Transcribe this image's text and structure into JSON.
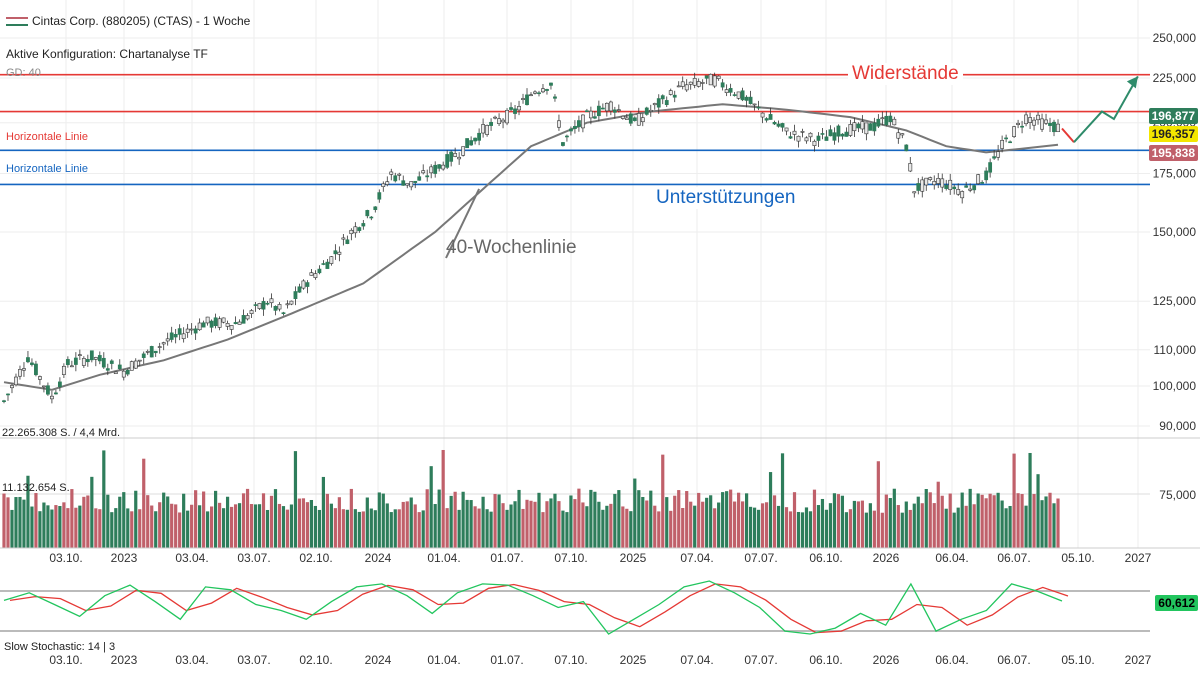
{
  "header": {
    "title": "Cintas Corp. (880205) (CTAS) - 1 Woche",
    "config": "Aktive Konfiguration: Chartanalyse TF",
    "ma_label": "GD: 40",
    "volume_top": "22.265.308 S. / 4,4 Mrd.",
    "volume_mid": "11.132.654 S.",
    "stoch_label": "Slow Stochastic: 14 | 3"
  },
  "price_tags": {
    "a": "196,877",
    "b": "196,357",
    "c": "195,838",
    "stoch": "60,612"
  },
  "annotations": {
    "resistance": "Widerstände",
    "support": "Unterstützungen",
    "ma40": "40-Wochenlinie",
    "hline_red": "Horizontale Linie",
    "hline_blue": "Horizontale Linie"
  },
  "colors": {
    "up": "#2e7d5b",
    "down": "#c0606a",
    "red_line": "#e53935",
    "blue_line": "#1565c0",
    "ma": "#777777",
    "arrow": "#2e8b6a"
  },
  "chart_data": {
    "type": "candlestick",
    "title": "Cintas Corp. (880205) (CTAS) - 1 Woche",
    "price_axis": {
      "scale": "log",
      "ticks": [
        250000,
        225000,
        200000,
        175000,
        150000,
        125000,
        110000,
        100000,
        90000
      ]
    },
    "tick_labels": {
      "250000": "250,000",
      "225000": "225,000",
      "200000": "200,000",
      "175000": "175,000",
      "150000": "150,000",
      "125000": "125,000",
      "110000": "110,000",
      "100000": "100,000",
      "90000": "90,000"
    },
    "volume_tick": "75,000",
    "x_labels": [
      "03.10.",
      "2023",
      "03.04.",
      "03.07.",
      "02.10.",
      "2024",
      "01.04.",
      "01.07.",
      "07.10.",
      "2025",
      "07.04.",
      "07.07.",
      "06.10.",
      "2026",
      "06.04.",
      "06.07.",
      "05.10.",
      "2027"
    ],
    "horizontal_lines": [
      {
        "value": 227000,
        "color": "red"
      },
      {
        "value": 206000,
        "color": "red"
      },
      {
        "value": 186000,
        "color": "blue"
      },
      {
        "value": 170000,
        "color": "blue"
      }
    ],
    "close_path": [
      [
        0,
        96000
      ],
      [
        6,
        108000
      ],
      [
        12,
        97000
      ],
      [
        16,
        106000
      ],
      [
        22,
        108000
      ],
      [
        30,
        104000
      ],
      [
        40,
        112000
      ],
      [
        50,
        118000
      ],
      [
        58,
        118000
      ],
      [
        62,
        121000
      ],
      [
        66,
        125000
      ],
      [
        70,
        121000
      ],
      [
        76,
        132000
      ],
      [
        82,
        140000
      ],
      [
        87,
        150000
      ],
      [
        92,
        158000
      ],
      [
        97,
        175000
      ],
      [
        102,
        170000
      ],
      [
        108,
        177000
      ],
      [
        114,
        185000
      ],
      [
        120,
        196000
      ],
      [
        128,
        206000
      ],
      [
        133,
        218000
      ],
      [
        137,
        222000
      ],
      [
        140,
        190000
      ],
      [
        146,
        203000
      ],
      [
        152,
        210000
      ],
      [
        158,
        200000
      ],
      [
        164,
        210000
      ],
      [
        170,
        220000
      ],
      [
        178,
        224000
      ],
      [
        184,
        216000
      ],
      [
        190,
        205000
      ],
      [
        196,
        195000
      ],
      [
        204,
        191000
      ],
      [
        210,
        196000
      ],
      [
        218,
        198000
      ],
      [
        222,
        203000
      ],
      [
        226,
        188000
      ],
      [
        228,
        168000
      ],
      [
        234,
        172000
      ],
      [
        240,
        167000
      ],
      [
        246,
        174000
      ],
      [
        250,
        188000
      ],
      [
        256,
        203000
      ],
      [
        260,
        200000
      ],
      [
        265,
        197000
      ]
    ],
    "ma40_path": [
      [
        0,
        101000
      ],
      [
        12,
        99000
      ],
      [
        24,
        103000
      ],
      [
        40,
        107000
      ],
      [
        56,
        113000
      ],
      [
        72,
        121000
      ],
      [
        90,
        131000
      ],
      [
        108,
        150000
      ],
      [
        120,
        168000
      ],
      [
        132,
        188000
      ],
      [
        146,
        200000
      ],
      [
        162,
        206000
      ],
      [
        180,
        210000
      ],
      [
        196,
        207000
      ],
      [
        212,
        203000
      ],
      [
        226,
        196000
      ],
      [
        236,
        188000
      ],
      [
        246,
        185000
      ],
      [
        256,
        187000
      ],
      [
        265,
        189000
      ]
    ],
    "forecast_path": [
      [
        265,
        197000
      ],
      [
        268,
        190000
      ],
      [
        275,
        206000
      ],
      [
        278,
        202000
      ],
      [
        284,
        226000
      ]
    ],
    "volume_levels": [
      0.32,
      0.54
    ],
    "stochastic_k": [
      0.62,
      0.75,
      0.55,
      0.35,
      0.7,
      0.88,
      0.6,
      0.3,
      0.85,
      0.8,
      0.55,
      0.45,
      0.3,
      0.6,
      0.85,
      0.9,
      0.7,
      0.4,
      0.75,
      0.9,
      0.88,
      0.7,
      0.5,
      0.6,
      0.05,
      0.3,
      0.55,
      0.85,
      0.95,
      0.75,
      0.5,
      0.1,
      0.05,
      0.15,
      0.4,
      0.2,
      0.9,
      0.1,
      0.3,
      0.45,
      0.9,
      0.78,
      0.61
    ],
    "stochastic_levels": [
      80,
      20
    ]
  }
}
